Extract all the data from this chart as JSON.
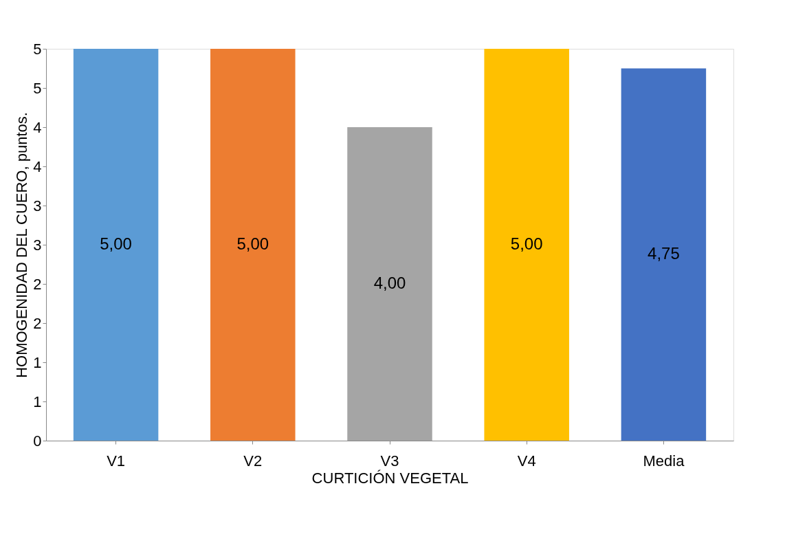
{
  "chart_data": {
    "type": "bar",
    "xlabel": "CURTICIÓN  VEGETAL",
    "ylabel": "HOMOGENIDAD DEL CUERO, puntos.",
    "categories": [
      "V1",
      "V2",
      "V3",
      "V4",
      "Media"
    ],
    "values": [
      5,
      5,
      4,
      5,
      4.75
    ],
    "colors": [
      "#5b9bd5",
      "#ed7d31",
      "#a5a5a5",
      "#ffc000",
      "#4472c4"
    ],
    "value_labels": [
      "5,00",
      "5,00",
      "4,00",
      "5,00",
      "4,75"
    ],
    "ylim": [
      0,
      5
    ],
    "yticks": [
      0,
      {
        "value": 0.5,
        "label": "1"
      },
      1,
      {
        "value": 1.5,
        "label": "2"
      },
      2,
      {
        "value": 2.5,
        "label": "3"
      },
      3,
      {
        "value": 3.5,
        "label": "4"
      },
      4,
      {
        "value": 4.5,
        "label": "5"
      },
      5
    ],
    "grid": false,
    "legend": false
  }
}
